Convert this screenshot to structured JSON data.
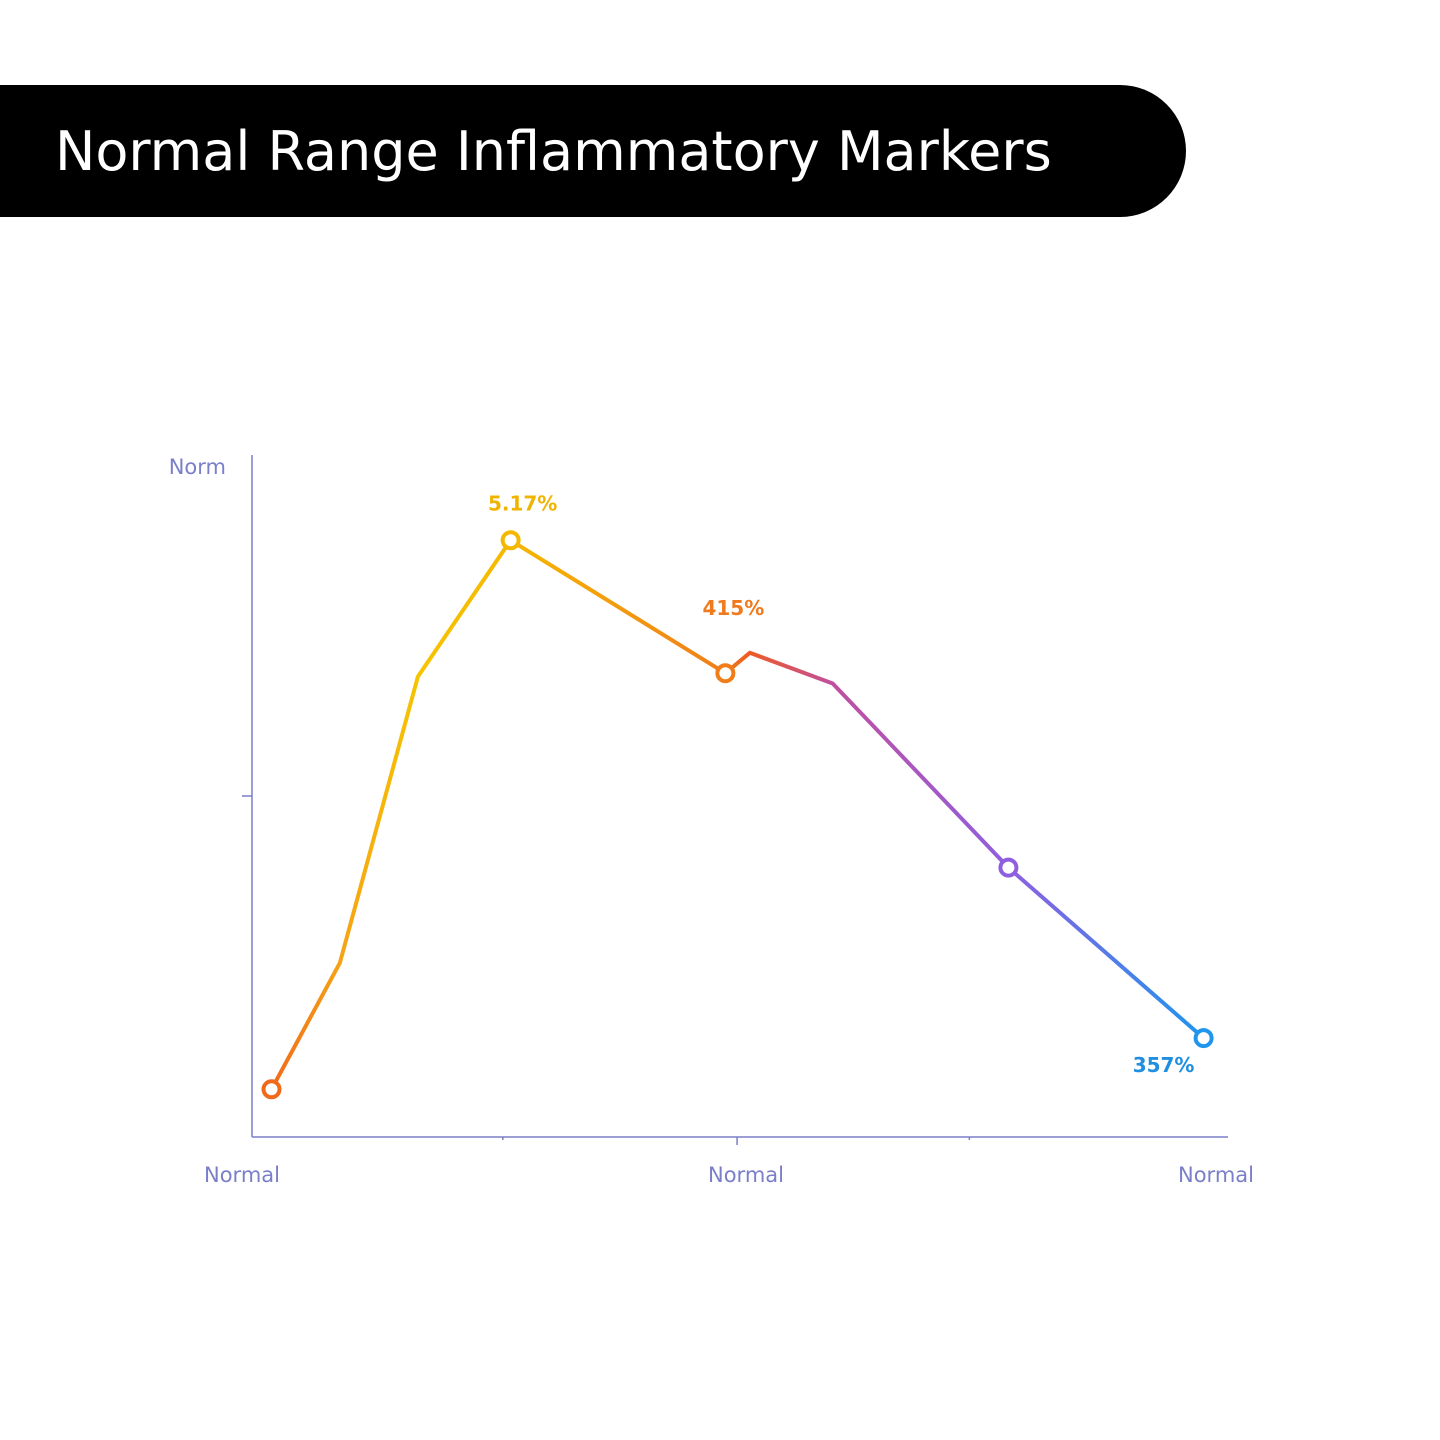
{
  "title": "Normal Range Inflammatory Markers",
  "chart_data": {
    "type": "line",
    "title": "Normal Range Inflammatory Markers",
    "ylabel": "Norm",
    "x_tick_labels": [
      "Normal",
      "Normal",
      "Normal"
    ],
    "x": [
      0.02,
      0.09,
      0.17,
      0.265,
      0.485,
      0.51,
      0.595,
      0.775,
      0.975
    ],
    "values": [
      0.07,
      0.255,
      0.675,
      0.875,
      0.68,
      0.71,
      0.665,
      0.395,
      0.145
    ],
    "markers": [
      0,
      3,
      4,
      7,
      8
    ],
    "xlim": [
      0,
      1
    ],
    "ylim": [
      0,
      1
    ],
    "data_labels": [
      {
        "point": 3,
        "text": "5.17%",
        "color": "#f0b400"
      },
      {
        "point": 4,
        "text": "415%",
        "color": "#f07a1e"
      },
      {
        "point": 8,
        "text": "357%",
        "color": "#1f8fe0"
      }
    ],
    "colors": {
      "axis": "#7b7fc9",
      "gradient": [
        "#f06a1a",
        "#f5a316",
        "#f5c400",
        "#f5b800",
        "#f07d1a",
        "#ee5a24",
        "#c04fa0",
        "#8f5fe0",
        "#1f95ee"
      ]
    }
  }
}
